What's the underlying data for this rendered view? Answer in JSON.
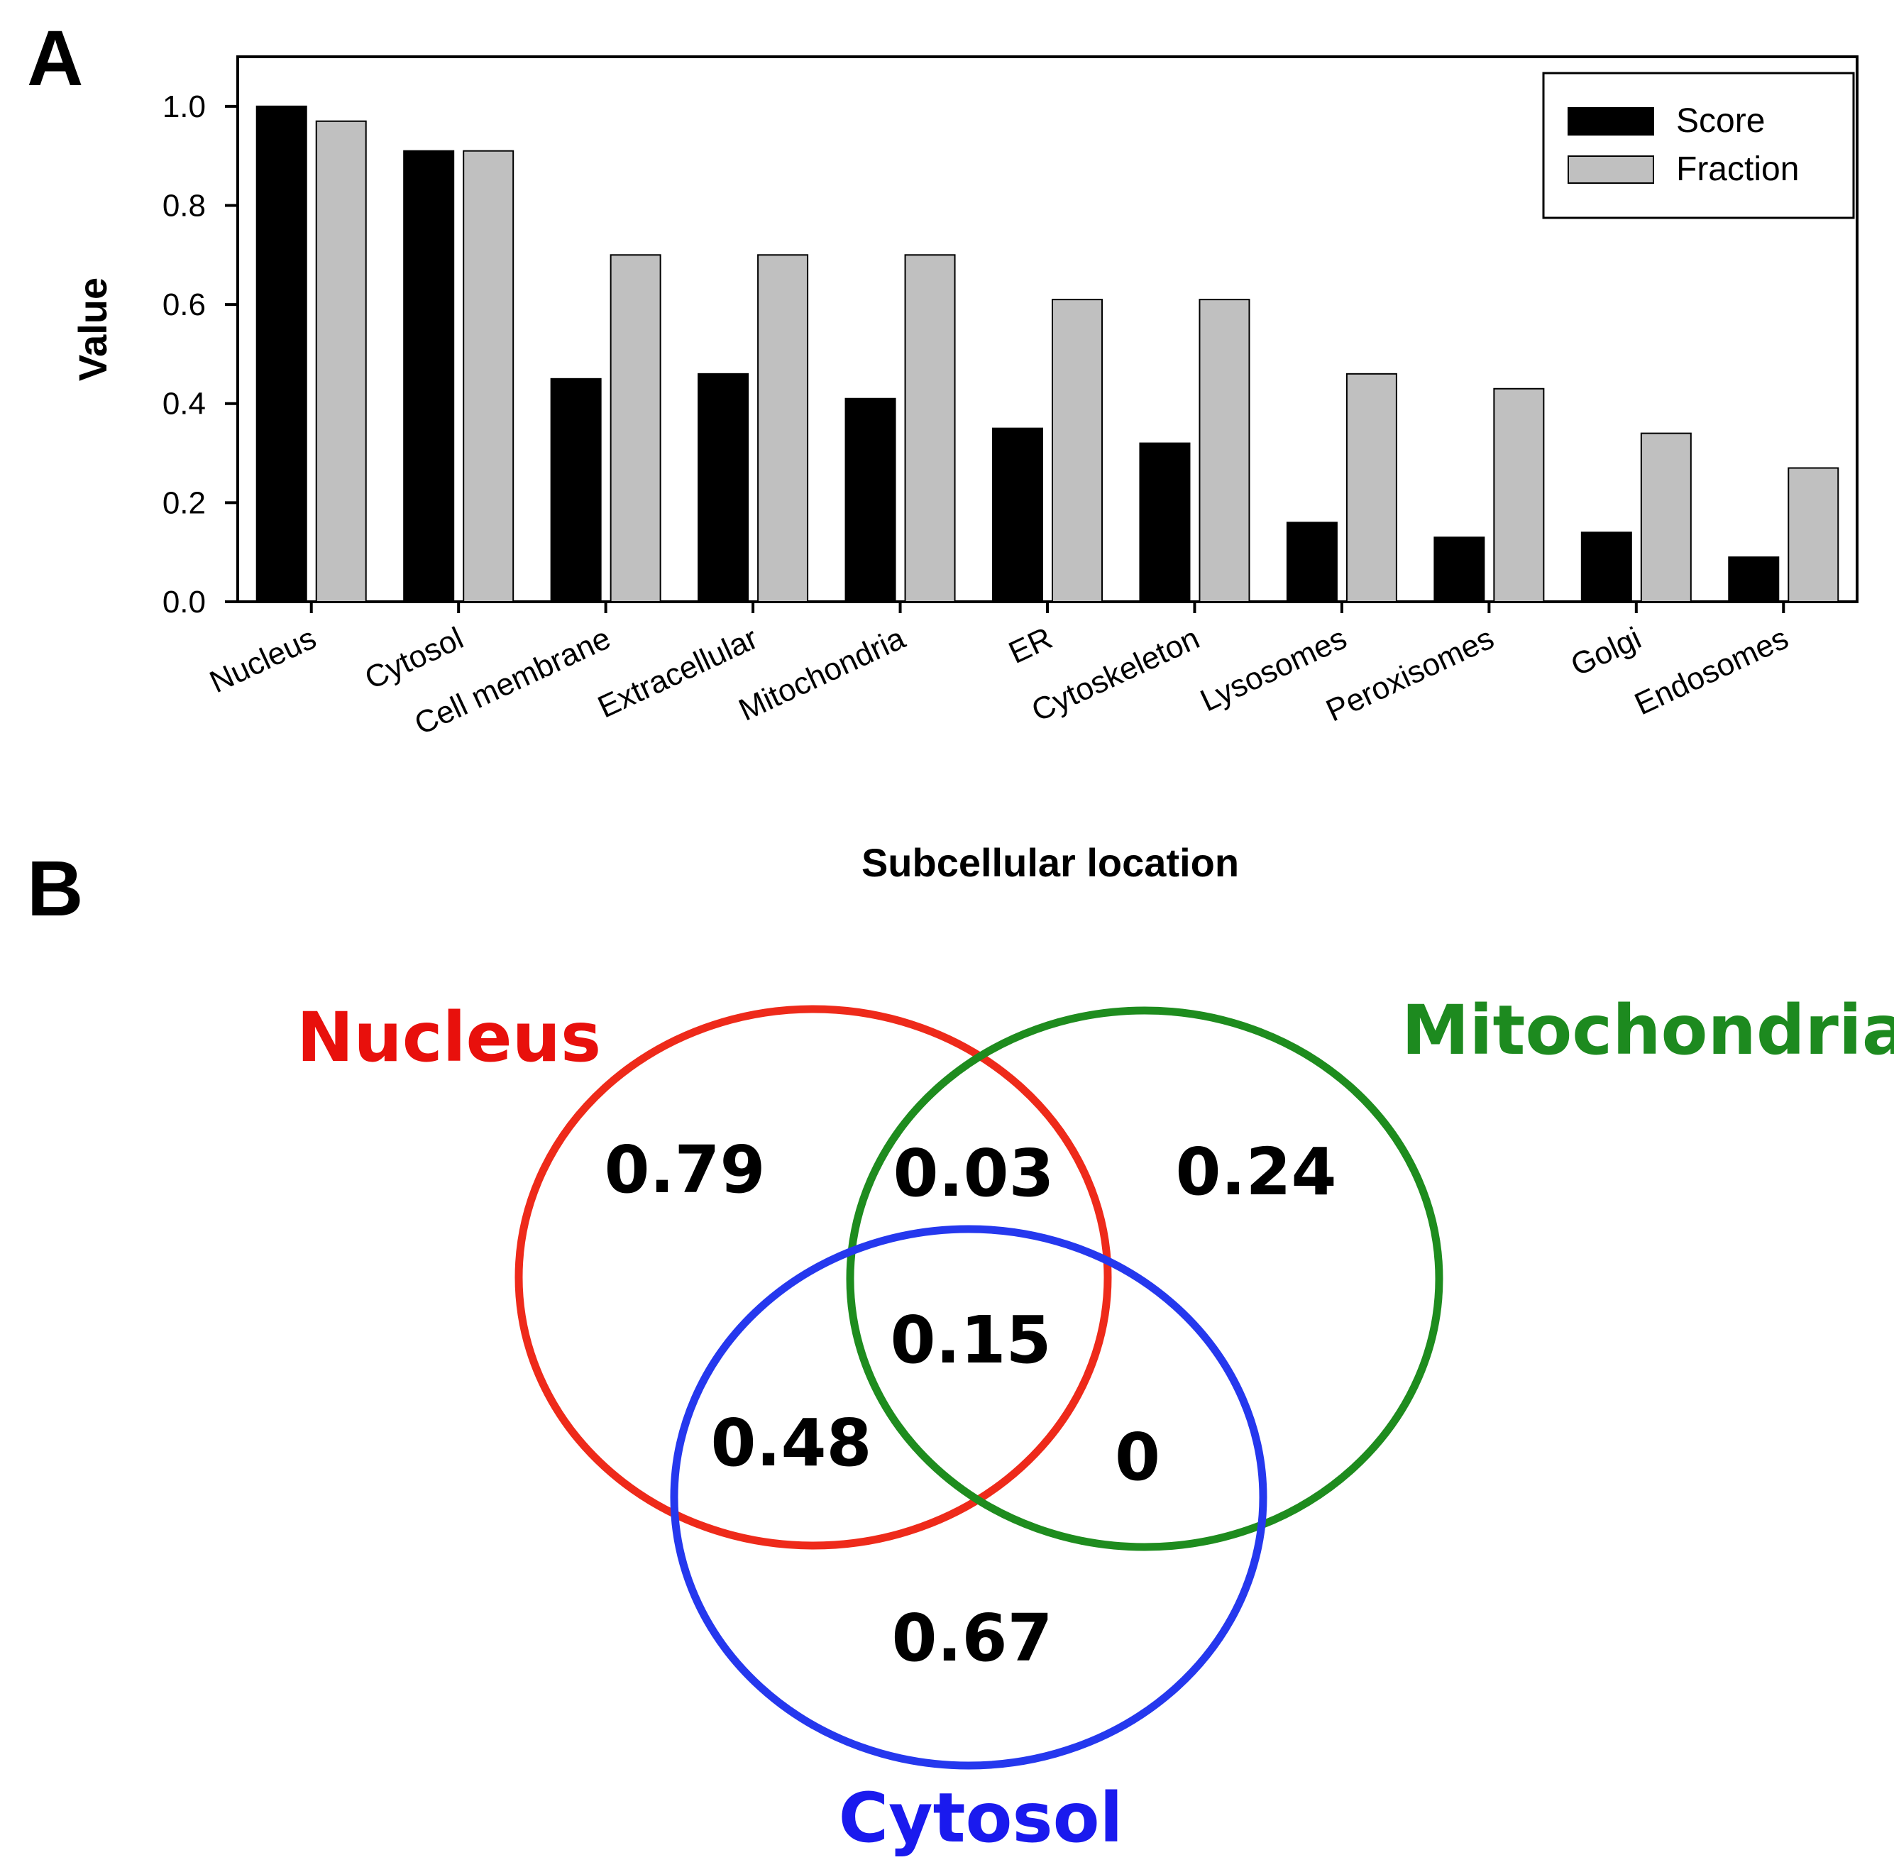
{
  "panel_a_label": "A",
  "panel_b_label": "B",
  "chart_data": [
    {
      "type": "bar",
      "xlabel": "Subcellular location",
      "ylabel": "Value",
      "ylim": [
        0,
        1.1
      ],
      "yticks": [
        "0.0",
        "0.2",
        "0.4",
        "0.6",
        "0.8",
        "1.0"
      ],
      "categories": [
        "Nucleus",
        "Cytosol",
        "Cell membrane",
        "Extracellular",
        "Mitochondria",
        "ER",
        "Cytoskeleton",
        "Lysosomes",
        "Peroxisomes",
        "Golgi",
        "Endosomes"
      ],
      "series": [
        {
          "name": "Score",
          "color": "#000000",
          "values": [
            1.0,
            0.91,
            0.45,
            0.46,
            0.41,
            0.35,
            0.32,
            0.16,
            0.13,
            0.14,
            0.09
          ]
        },
        {
          "name": "Fraction",
          "color": "#c0c0c0",
          "values": [
            0.97,
            0.91,
            0.7,
            0.7,
            0.7,
            0.61,
            0.61,
            0.46,
            0.43,
            0.34,
            0.27
          ]
        }
      ],
      "legend_position": "top-right",
      "grid": false
    },
    {
      "type": "venn",
      "sets": [
        {
          "name": "Nucleus",
          "color": "#ee2a1a",
          "label_color": "#e8100c"
        },
        {
          "name": "Mitochondria",
          "color": "#1e8c1e",
          "label_color": "#1d8a1f"
        },
        {
          "name": "Cytosol",
          "color": "#2538ee",
          "label_color": "#1a1aee"
        }
      ],
      "regions": {
        "nucleus_only": "0.79",
        "nucleus_mitochondria": "0.03",
        "mitochondria_only": "0.24",
        "all_three": "0.15",
        "nucleus_cytosol": "0.48",
        "mitochondria_cytosol": "0",
        "cytosol_only": "0.67"
      }
    }
  ]
}
